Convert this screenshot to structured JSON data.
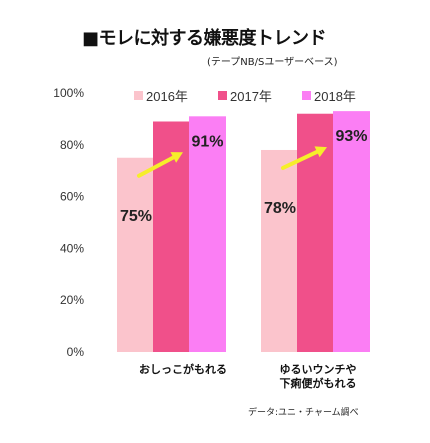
{
  "title": "■モレに対する嫌悪度トレンド",
  "subtitle": "(テープNB/Sユーザーベース)",
  "note": "データ:ユニ・チャーム調べ",
  "chart_data": {
    "type": "bar",
    "title": "■モレに対する嫌悪度トレンド",
    "subtitle": "(テープNB/Sユーザーベース)",
    "categories": [
      [
        "おしっこがもれる"
      ],
      [
        "ゆるいウンチや",
        "下痢便がもれる"
      ]
    ],
    "series": [
      {
        "name": "2016年",
        "color": "#fbc4cc",
        "values": [
          75,
          78
        ]
      },
      {
        "name": "2017年",
        "color": "#f0508a",
        "values": [
          89,
          92
        ]
      },
      {
        "name": "2018年",
        "color": "#fb7ef4",
        "values": [
          91,
          93
        ]
      }
    ],
    "data_labels": [
      {
        "category": 0,
        "series": 0,
        "text": "75%"
      },
      {
        "category": 0,
        "series": 2,
        "text": "91%"
      },
      {
        "category": 1,
        "series": 0,
        "text": "78%"
      },
      {
        "category": 1,
        "series": 2,
        "text": "93%"
      }
    ],
    "ylim": [
      0,
      100
    ],
    "yticks": [
      0,
      20,
      40,
      60,
      80,
      100
    ],
    "ytick_labels": [
      "0%",
      "20%",
      "40%",
      "60%",
      "80%",
      "100%"
    ],
    "xlabel": "",
    "ylabel": "",
    "grid": false,
    "legend_position": "top",
    "arrow_color": "#f6ee2a"
  }
}
